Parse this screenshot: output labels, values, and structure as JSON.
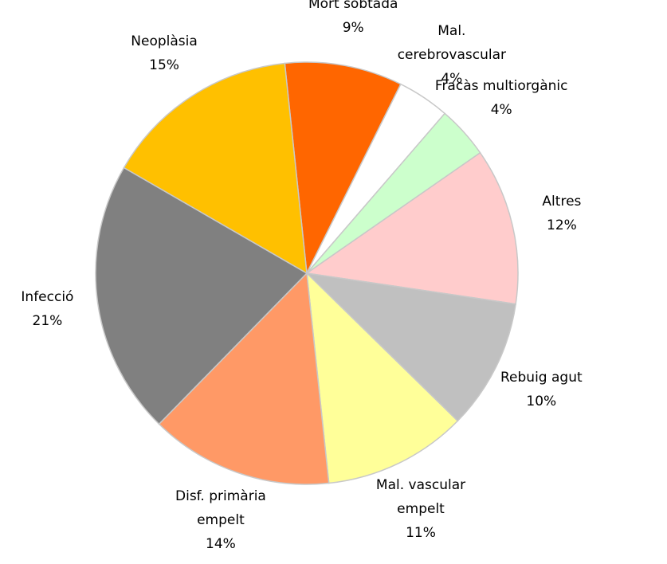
{
  "chart_data": {
    "type": "pie",
    "categories": [
      "Mort sobtada",
      "Mal.\ncerebrovascular",
      "Fracàs multiorgànic",
      "Altres",
      "Rebuig agut",
      "Mal. vascular\nempelt",
      "Disf. primària\nempelt",
      "Infecció",
      "Neoplàsia"
    ],
    "values": [
      9,
      4,
      4,
      12,
      10,
      11,
      14,
      21,
      15
    ],
    "value_labels": [
      "9%",
      "4%",
      "4%",
      "12%",
      "10%",
      "11%",
      "14%",
      "21%",
      "15%"
    ],
    "colors": [
      "#ff6600",
      "#ffffff",
      "#ccffcc",
      "#ffcccc",
      "#c0c0c0",
      "#ffff99",
      "#ff9966",
      "#808080",
      "#ffc000"
    ]
  }
}
